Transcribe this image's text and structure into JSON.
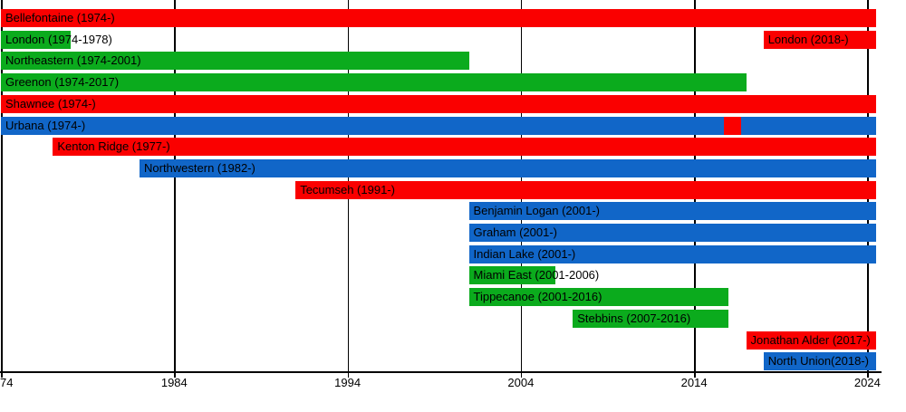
{
  "chart_data": {
    "type": "bar",
    "subtype": "gantt-membership-timeline",
    "title": "",
    "xlabel": "",
    "ylabel": "",
    "grid": "vertical-decade-lines",
    "x_axis": {
      "start_year": 1974,
      "axis_end": 2024.5,
      "tick_years": [
        1974,
        1984,
        1994,
        2004,
        2014,
        2024
      ],
      "tick_labels": [
        "74",
        "1984",
        "1994",
        "2004",
        "2014",
        "2024"
      ]
    },
    "colors": {
      "red": "#fa0000",
      "green": "#0bab1d",
      "blue": "#1166c8",
      "axis": "#000000",
      "label_text": "#000000"
    },
    "rows": [
      {
        "name": "bellefontaine",
        "segments": [
          {
            "label": "Bellefontaine (1974-)",
            "start": 1974,
            "end": "present",
            "color": "red"
          }
        ]
      },
      {
        "name": "london",
        "segments": [
          {
            "label": "London (1974-1978)",
            "start": 1974,
            "end": 1978,
            "color": "green"
          },
          {
            "label": "London (2018-)",
            "start": 2018,
            "end": "present",
            "color": "red"
          }
        ]
      },
      {
        "name": "northeastern",
        "segments": [
          {
            "label": "Northeastern (1974-2001)",
            "start": 1974,
            "end": 2001,
            "color": "green"
          }
        ]
      },
      {
        "name": "greenon",
        "segments": [
          {
            "label": "Greenon (1974-2017)",
            "start": 1974,
            "end": 2017,
            "color": "green"
          }
        ]
      },
      {
        "name": "shawnee",
        "segments": [
          {
            "label": "Shawnee (1974-)",
            "start": 1974,
            "end": "present",
            "color": "red"
          }
        ]
      },
      {
        "name": "urbana",
        "segments": [
          {
            "label": "Urbana (1974-)",
            "start": 1974,
            "end": "present",
            "color": "blue"
          },
          {
            "label": "",
            "start": 2015.7,
            "end": 2016.7,
            "color": "red"
          }
        ]
      },
      {
        "name": "kenton-ridge",
        "segments": [
          {
            "label": "Kenton Ridge (1977-)",
            "start": 1977,
            "end": "present",
            "color": "red"
          }
        ]
      },
      {
        "name": "northwestern",
        "segments": [
          {
            "label": "Northwestern (1982-)",
            "start": 1982,
            "end": "present",
            "color": "blue"
          }
        ]
      },
      {
        "name": "tecumseh",
        "segments": [
          {
            "label": "Tecumseh (1991-)",
            "start": 1991,
            "end": "present",
            "color": "red"
          }
        ]
      },
      {
        "name": "benjamin-logan",
        "segments": [
          {
            "label": "Benjamin Logan (2001-)",
            "start": 2001,
            "end": "present",
            "color": "blue"
          }
        ]
      },
      {
        "name": "graham",
        "segments": [
          {
            "label": "Graham (2001-)",
            "start": 2001,
            "end": "present",
            "color": "blue"
          }
        ]
      },
      {
        "name": "indian-lake",
        "segments": [
          {
            "label": "Indian Lake (2001-)",
            "start": 2001,
            "end": "present",
            "color": "blue"
          }
        ]
      },
      {
        "name": "miami-east",
        "segments": [
          {
            "label": "Miami East (2001-2006)",
            "start": 2001,
            "end": 2006,
            "color": "green"
          }
        ]
      },
      {
        "name": "tippecanoe",
        "segments": [
          {
            "label": "Tippecanoe (2001-2016)",
            "start": 2001,
            "end": 2016,
            "color": "green"
          }
        ]
      },
      {
        "name": "stebbins",
        "segments": [
          {
            "label": "Stebbins (2007-2016)",
            "start": 2007,
            "end": 2016,
            "color": "green"
          }
        ]
      },
      {
        "name": "jonathan-alder",
        "segments": [
          {
            "label": "Jonathan Alder (2017-)",
            "start": 2017,
            "end": "present",
            "color": "red"
          }
        ]
      },
      {
        "name": "north-union",
        "segments": [
          {
            "label": "North Union(2018-)",
            "start": 2018,
            "end": "present",
            "color": "blue"
          }
        ]
      }
    ]
  }
}
